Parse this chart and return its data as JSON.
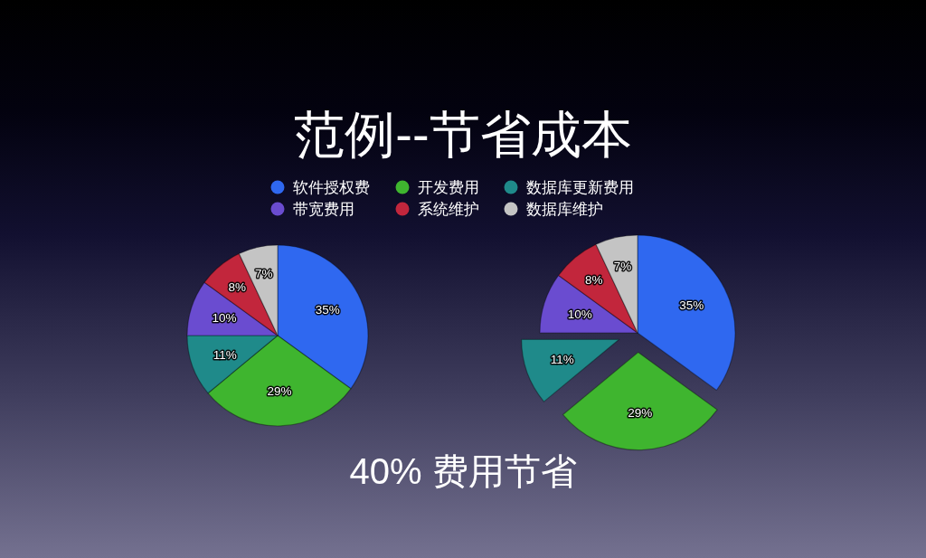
{
  "chart_data": [
    {
      "type": "pie",
      "title": "范例--节省成本",
      "categories": [
        "软件授权费",
        "开发费用",
        "数据库更新费用",
        "带宽费用",
        "系统维护",
        "数据库维护"
      ],
      "values": [
        35,
        29,
        11,
        10,
        8,
        7
      ],
      "colors": [
        "#2f68f0",
        "#3fb52f",
        "#1f8a8a",
        "#6a4cd0",
        "#c2263c",
        "#c4c4c4"
      ],
      "value_labels": [
        "35%",
        "29%",
        "11%",
        "10%",
        "8%",
        "7%"
      ],
      "legend": "top"
    },
    {
      "type": "pie",
      "values": [
        35,
        29,
        11,
        10,
        8,
        7
      ],
      "colors": [
        "#2f68f0",
        "#3fb52f",
        "#1f8a8a",
        "#6a4cd0",
        "#c2263c",
        "#c4c4c4"
      ],
      "value_labels": [
        "35%",
        "29%",
        "11%",
        "10%",
        "8%",
        "7%"
      ],
      "annotations": [
        "40% 费用节省"
      ]
    }
  ]
}
